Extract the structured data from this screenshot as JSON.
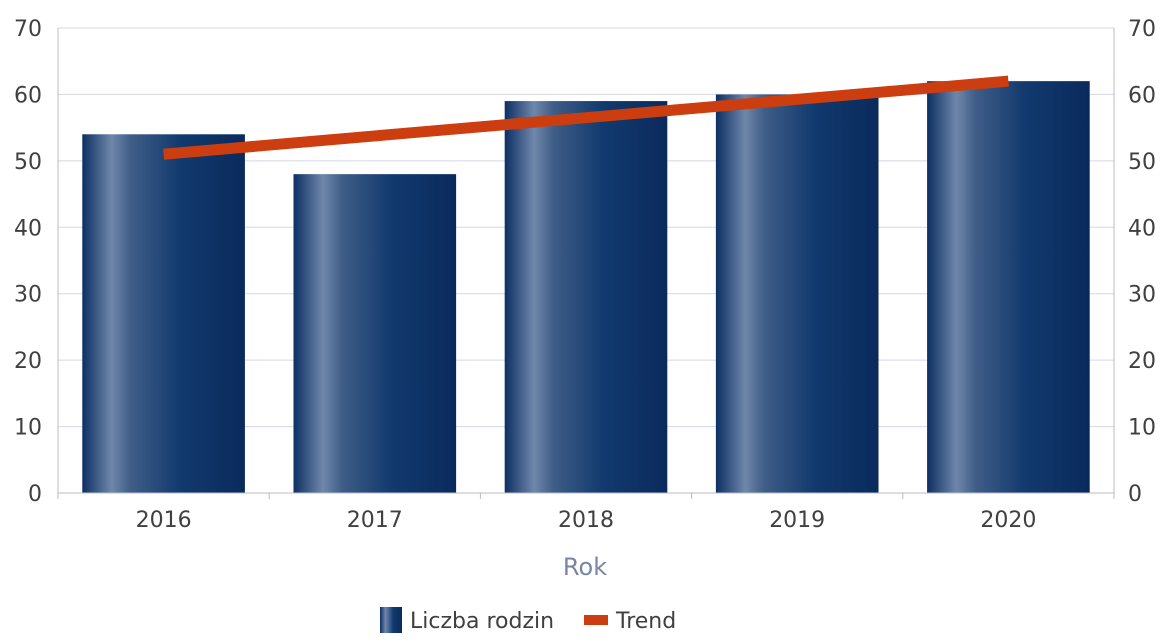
{
  "chart_data": {
    "type": "bar",
    "categories": [
      "2016",
      "2017",
      "2018",
      "2019",
      "2020"
    ],
    "series": [
      {
        "name": "Liczba rodzin",
        "type": "bar",
        "values": [
          54,
          48,
          59,
          60,
          62
        ],
        "color": "#123a6e"
      },
      {
        "name": "Trend",
        "type": "line",
        "values": [
          51,
          53.75,
          56.5,
          59.25,
          62
        ],
        "color": "#cc3d10"
      }
    ],
    "title": "",
    "xlabel": "Rok",
    "ylabel": "",
    "ylim": [
      0,
      70
    ],
    "yticks": [
      0,
      10,
      20,
      30,
      40,
      50,
      60,
      70
    ],
    "y2lim": [
      0,
      70
    ],
    "y2ticks": [
      0,
      10,
      20,
      30,
      40,
      50,
      60,
      70
    ],
    "grid": true,
    "legend_position": "bottom-center"
  },
  "colors": {
    "gridline": "#d4d8e4",
    "axis": "#b8bcc8",
    "bar_dark": "#0a2e64",
    "bar_light": "#7d93b4",
    "trend": "#cc3d10"
  }
}
